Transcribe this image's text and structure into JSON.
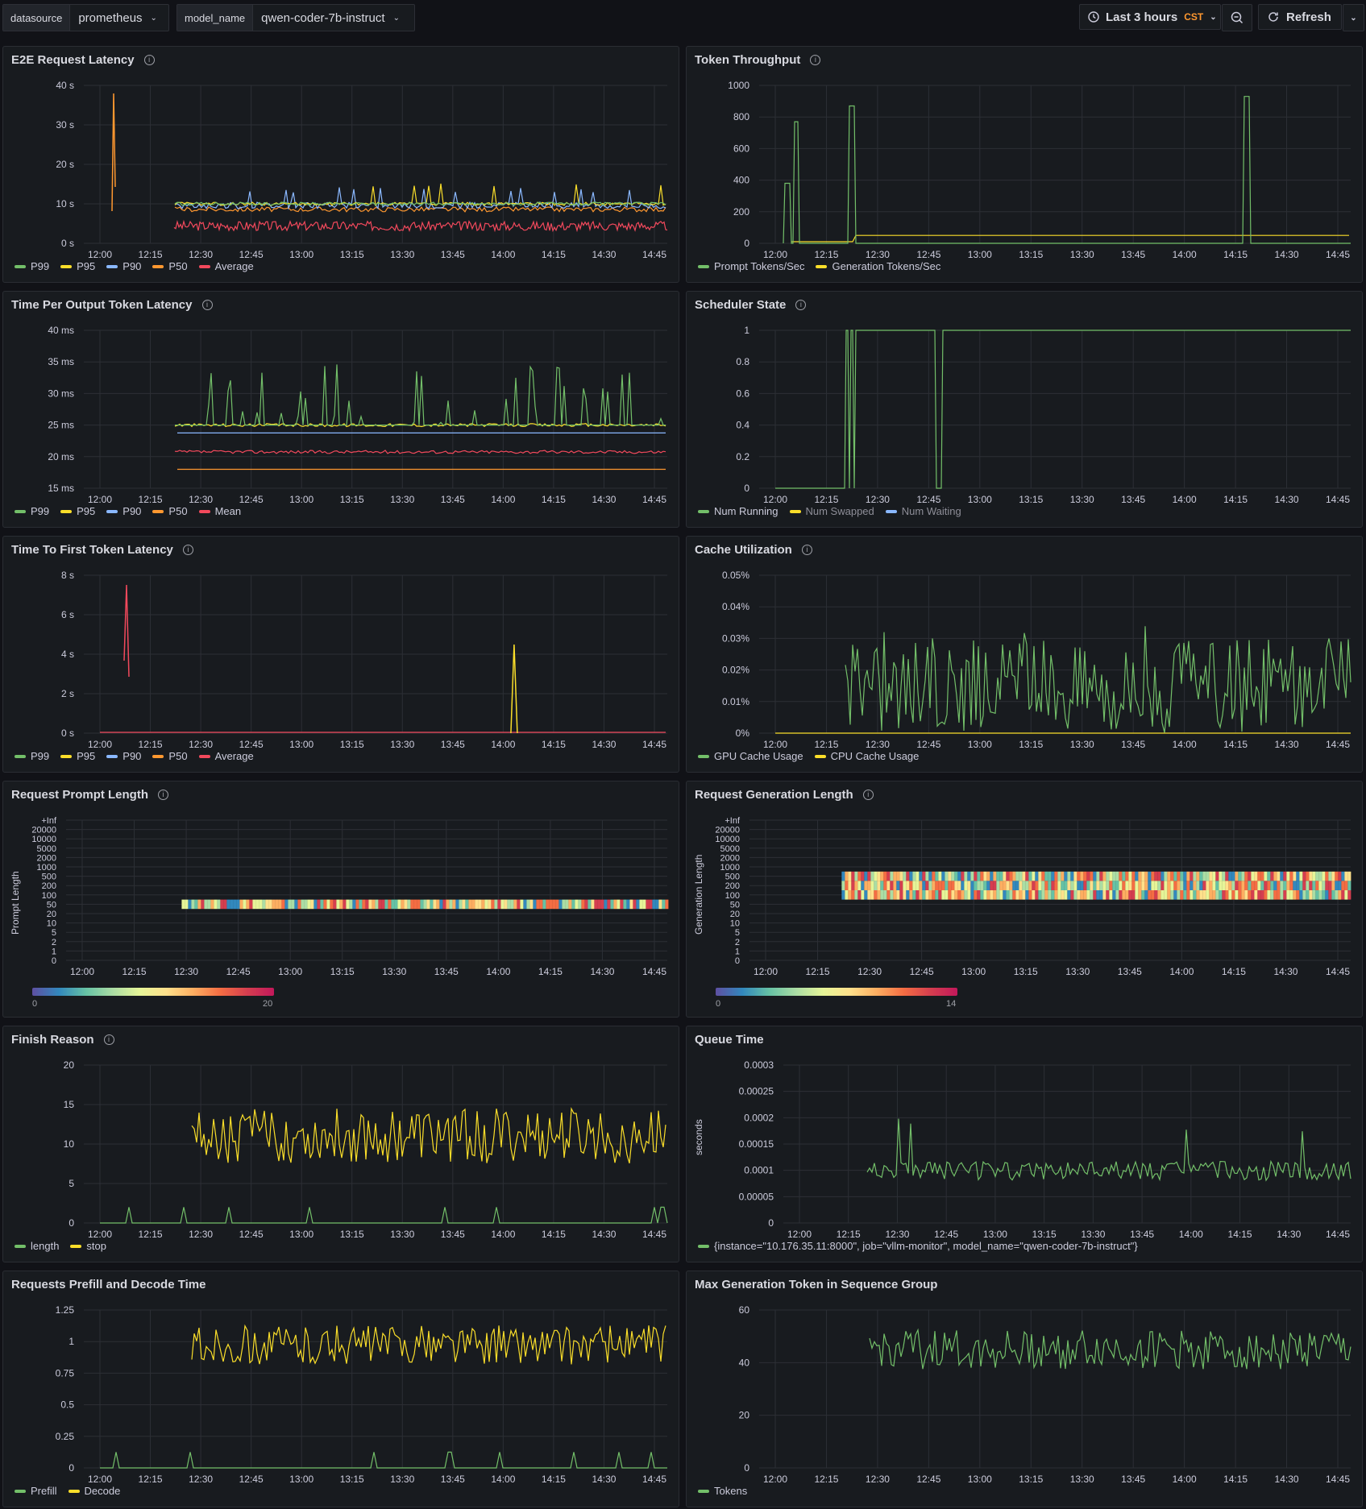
{
  "toolbar": {
    "vars": [
      {
        "label": "datasource",
        "value": "prometheus"
      },
      {
        "label": "model_name",
        "value": "qwen-coder-7b-instruct"
      }
    ],
    "time_range": "Last 3 hours",
    "timezone": "CST",
    "refresh_label": "Refresh"
  },
  "x_ticks": [
    "12:00",
    "12:15",
    "12:30",
    "12:45",
    "13:00",
    "13:15",
    "13:30",
    "13:45",
    "14:00",
    "14:15",
    "14:30",
    "14:45"
  ],
  "heatmap_y_ticks": [
    "+Inf",
    "20000",
    "10000",
    "5000",
    "2000",
    "1000",
    "500",
    "200",
    "100",
    "50",
    "20",
    "10",
    "5",
    "2",
    "1",
    "0"
  ],
  "panels": [
    {
      "id": "p1",
      "title": "E2E Request Latency",
      "info": true,
      "y_ticks": [
        "40 s",
        "30 s",
        "20 s",
        "10 s",
        "0 s"
      ],
      "legend": [
        {
          "name": "P99",
          "color": "#73bf69"
        },
        {
          "name": "P95",
          "color": "#fade2a"
        },
        {
          "name": "P90",
          "color": "#8ab8ff"
        },
        {
          "name": "P50",
          "color": "#ff9830"
        },
        {
          "name": "Average",
          "color": "#f2495c"
        }
      ]
    },
    {
      "id": "p2",
      "title": "Token Throughput",
      "info": true,
      "y_ticks": [
        "1000",
        "800",
        "600",
        "400",
        "200",
        "0"
      ],
      "legend": [
        {
          "name": "Prompt Tokens/Sec",
          "color": "#73bf69"
        },
        {
          "name": "Generation Tokens/Sec",
          "color": "#fade2a"
        }
      ]
    },
    {
      "id": "p3",
      "title": "Time Per Output Token Latency",
      "info": true,
      "y_ticks": [
        "40 ms",
        "35 ms",
        "30 ms",
        "25 ms",
        "20 ms",
        "15 ms"
      ],
      "legend": [
        {
          "name": "P99",
          "color": "#73bf69"
        },
        {
          "name": "P95",
          "color": "#fade2a"
        },
        {
          "name": "P90",
          "color": "#8ab8ff"
        },
        {
          "name": "P50",
          "color": "#ff9830"
        },
        {
          "name": "Mean",
          "color": "#f2495c"
        }
      ]
    },
    {
      "id": "p4",
      "title": "Scheduler State",
      "info": true,
      "y_ticks": [
        "1",
        "0.8",
        "0.6",
        "0.4",
        "0.2",
        "0"
      ],
      "legend": [
        {
          "name": "Num Running",
          "color": "#73bf69"
        },
        {
          "name": "Num Swapped",
          "color": "#fade2a"
        },
        {
          "name": "Num Waiting",
          "color": "#8ab8ff"
        }
      ]
    },
    {
      "id": "p5",
      "title": "Time To First Token Latency",
      "info": true,
      "y_ticks": [
        "8 s",
        "6 s",
        "4 s",
        "2 s",
        "0 s"
      ],
      "legend": [
        {
          "name": "P99",
          "color": "#73bf69"
        },
        {
          "name": "P95",
          "color": "#fade2a"
        },
        {
          "name": "P90",
          "color": "#8ab8ff"
        },
        {
          "name": "P50",
          "color": "#ff9830"
        },
        {
          "name": "Average",
          "color": "#f2495c"
        }
      ]
    },
    {
      "id": "p6",
      "title": "Cache Utilization",
      "info": true,
      "y_ticks": [
        "0.05%",
        "0.04%",
        "0.03%",
        "0.02%",
        "0.01%",
        "0%"
      ],
      "legend": [
        {
          "name": "GPU Cache Usage",
          "color": "#73bf69"
        },
        {
          "name": "CPU Cache Usage",
          "color": "#fade2a"
        }
      ]
    },
    {
      "id": "p7",
      "title": "Request Prompt Length",
      "info": true,
      "y_label": "Prompt Length",
      "scale_min": "0",
      "scale_max": "20"
    },
    {
      "id": "p8",
      "title": "Request Generation Length",
      "info": true,
      "y_label": "Generation Length",
      "scale_min": "0",
      "scale_max": "14"
    },
    {
      "id": "p9",
      "title": "Finish Reason",
      "info": true,
      "y_ticks": [
        "20",
        "15",
        "10",
        "5",
        "0"
      ],
      "legend": [
        {
          "name": "length",
          "color": "#73bf69"
        },
        {
          "name": "stop",
          "color": "#fade2a"
        }
      ]
    },
    {
      "id": "p10",
      "title": "Queue Time",
      "info": false,
      "y_label": "seconds",
      "y_ticks": [
        "0.0003",
        "0.00025",
        "0.0002",
        "0.00015",
        "0.0001",
        "0.00005",
        "0"
      ],
      "legend": [
        {
          "name": "{instance=\"10.176.35.11:8000\", job=\"vllm-monitor\", model_name=\"qwen-coder-7b-instruct\"}",
          "color": "#73bf69"
        }
      ]
    },
    {
      "id": "p11",
      "title": "Requests Prefill and Decode Time",
      "info": false,
      "y_ticks": [
        "1.25",
        "1",
        "0.75",
        "0.5",
        "0.25",
        "0"
      ],
      "legend": [
        {
          "name": "Prefill",
          "color": "#73bf69"
        },
        {
          "name": "Decode",
          "color": "#fade2a"
        }
      ]
    },
    {
      "id": "p12",
      "title": "Max Generation Token in Sequence Group",
      "info": false,
      "y_ticks": [
        "60",
        "40",
        "20",
        "0"
      ],
      "legend": [
        {
          "name": "Tokens",
          "color": "#73bf69"
        }
      ]
    }
  ]
}
